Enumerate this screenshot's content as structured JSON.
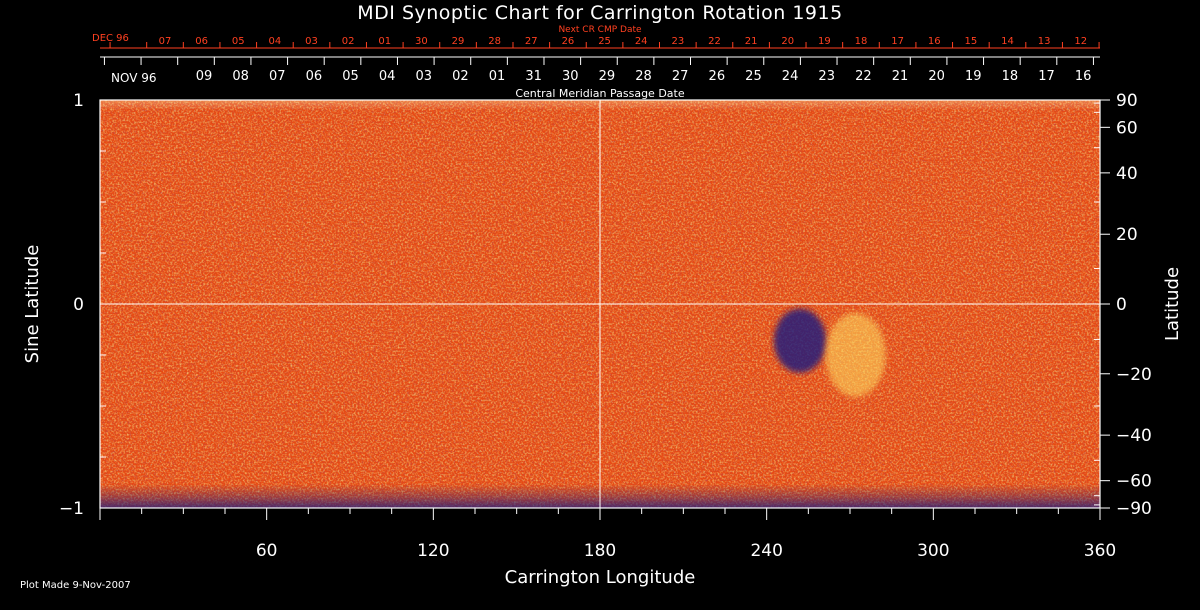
{
  "title": "MDI Synoptic Chart for Carrington Rotation 1915",
  "plot_made": "Plot Made  9-Nov-2007",
  "colors": {
    "background": "#000000",
    "axis": "#ffffff",
    "next_cr_axis": "#ff4020",
    "map_base": "#e84a12",
    "map_dark": "#1a1a80",
    "map_bright": "#ffe060"
  },
  "chart_data": {
    "type": "heatmap",
    "title": "MDI Synoptic Chart for Carrington Rotation 1915",
    "xlabel": "Carrington Longitude",
    "ylabel_left": "Sine Latitude",
    "ylabel_right": "Latitude",
    "xlim": [
      0,
      360
    ],
    "ylim": [
      -1,
      1
    ],
    "x_ticks": [
      60,
      120,
      180,
      240,
      300,
      360
    ],
    "y_left_ticks": [
      {
        "value": 1,
        "label": "1"
      },
      {
        "value": 0,
        "label": "0"
      },
      {
        "value": -1,
        "label": "−1"
      }
    ],
    "y_right_ticks": [
      {
        "lat": 90,
        "label": "90"
      },
      {
        "lat": 60,
        "label": "60"
      },
      {
        "lat": 40,
        "label": "40"
      },
      {
        "lat": 20,
        "label": "20"
      },
      {
        "lat": 0,
        "label": "0"
      },
      {
        "lat": -20,
        "label": "−20"
      },
      {
        "lat": -40,
        "label": "−40"
      },
      {
        "lat": -60,
        "label": "−60"
      },
      {
        "lat": -90,
        "label": "−90"
      }
    ],
    "cmp_axis": {
      "label": "Central Meridian Passage Date",
      "start_label": "NOV 96",
      "dates": [
        "09",
        "08",
        "07",
        "06",
        "05",
        "04",
        "03",
        "02",
        "01",
        "31",
        "30",
        "29",
        "28",
        "27",
        "26",
        "25",
        "24",
        "23",
        "22",
        "21",
        "20",
        "19",
        "18",
        "17",
        "16"
      ]
    },
    "next_cr_axis": {
      "label": "Next CR CMP Date",
      "start_label": "DEC 96",
      "dates": [
        "07",
        "06",
        "05",
        "04",
        "03",
        "02",
        "01",
        "30",
        "29",
        "28",
        "27",
        "26",
        "25",
        "24",
        "23",
        "22",
        "21",
        "20",
        "19",
        "18",
        "17",
        "16",
        "15",
        "14",
        "13",
        "12"
      ]
    },
    "gridlines": {
      "x": [
        180
      ],
      "y_sine": [
        0
      ]
    },
    "features": [
      {
        "name": "active region negative polarity",
        "lon": 252,
        "sinlat": -0.18
      },
      {
        "name": "active region positive polarity",
        "lon": 272,
        "sinlat": -0.25
      }
    ]
  }
}
